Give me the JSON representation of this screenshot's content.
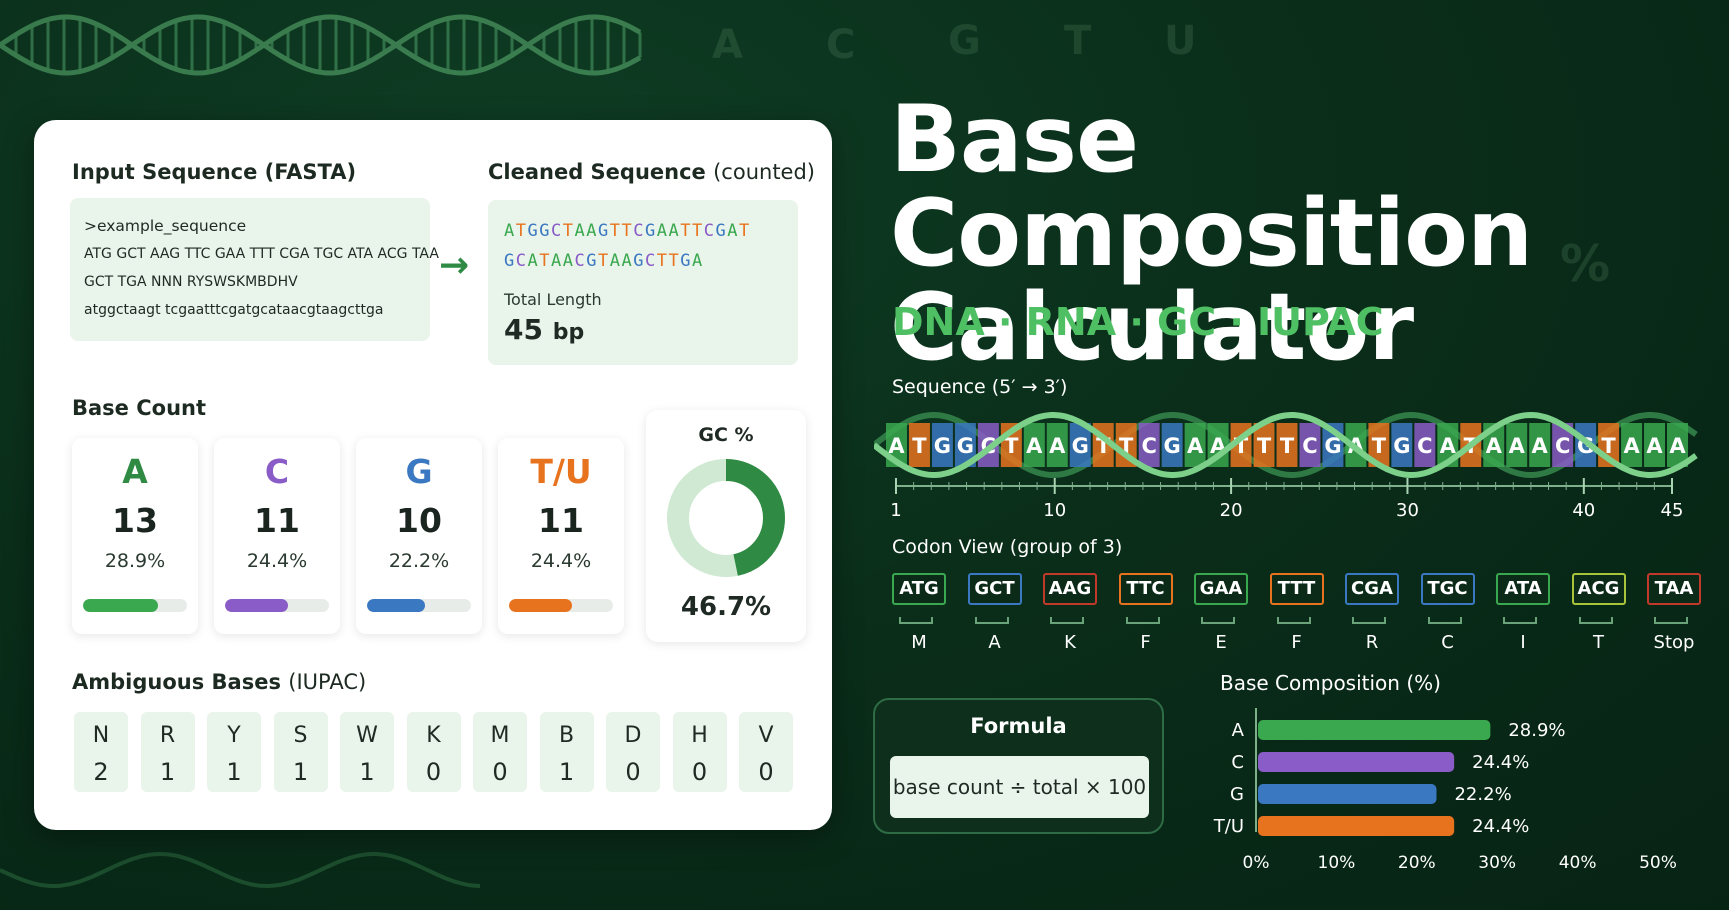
{
  "background_letters": [
    "A",
    "C",
    "G",
    "T",
    "U",
    "%"
  ],
  "left_card": {
    "input": {
      "title": "Input Sequence (FASTA)",
      "lines": [
        ">example_sequence",
        "ATG GCT AAG TTC GAA TTT CGA TGC ATA ACG TAA",
        "GCT TGA NNN RYSWSKMBDHV",
        "atggctaagt tcgaatttcgatgcataacgtaagcttga"
      ]
    },
    "cleaned": {
      "title_bold": "Cleaned Sequence",
      "title_light": "(counted)",
      "line1": "ATGGCTAAGTTCGAATTCGAT",
      "line2": "GCATAACGTAAGCTTGA",
      "length_label": "Total Length",
      "length_value": "45",
      "length_unit": "bp"
    },
    "base_count": {
      "title": "Base Count",
      "bases": [
        {
          "letter": "A",
          "count": "13",
          "pct": "28.9%",
          "fraction": 0.289,
          "color": "#3aa84f"
        },
        {
          "letter": "C",
          "count": "11",
          "pct": "24.4%",
          "fraction": 0.244,
          "color": "#8a5cc7"
        },
        {
          "letter": "G",
          "count": "10",
          "pct": "22.2%",
          "fraction": 0.222,
          "color": "#3b78c2"
        },
        {
          "letter": "T/U",
          "count": "11",
          "pct": "24.4%",
          "fraction": 0.244,
          "color": "#e8731e"
        }
      ]
    },
    "gc": {
      "title": "GC %",
      "value": "46.7%",
      "fraction": 0.467,
      "color": "#2f8a44",
      "light_color": "#cfe9d2"
    },
    "ambiguous": {
      "title_bold": "Ambiguous Bases",
      "title_light": "(IUPAC)",
      "items": [
        {
          "l": "N",
          "n": "2"
        },
        {
          "l": "R",
          "n": "1"
        },
        {
          "l": "Y",
          "n": "1"
        },
        {
          "l": "S",
          "n": "1"
        },
        {
          "l": "W",
          "n": "1"
        },
        {
          "l": "K",
          "n": "0"
        },
        {
          "l": "M",
          "n": "0"
        },
        {
          "l": "B",
          "n": "1"
        },
        {
          "l": "D",
          "n": "0"
        },
        {
          "l": "H",
          "n": "0"
        },
        {
          "l": "V",
          "n": "0"
        }
      ]
    }
  },
  "title": {
    "line1": "Base Composition",
    "line2": "Calculator",
    "subtitle": "DNA · RNA · GC · IUPAC"
  },
  "sequence": {
    "label": "Sequence (5′ → 3′)",
    "bases": "ATGGCTAAGTTCGAATTTCGATGCATAAACGTAAA",
    "ticks": [
      "1",
      "10",
      "20",
      "30",
      "40",
      "45"
    ],
    "colors": {
      "A": "#3aa84f",
      "C": "#8a5cc7",
      "G": "#3b78c2",
      "T": "#e8731e"
    }
  },
  "codons": {
    "label": "Codon View (group of 3)",
    "items": [
      {
        "codon": "ATG",
        "aa": "M",
        "color": "#3aa84f"
      },
      {
        "codon": "GCT",
        "aa": "A",
        "color": "#3b78c2"
      },
      {
        "codon": "AAG",
        "aa": "K",
        "color": "#c0392b"
      },
      {
        "codon": "TTC",
        "aa": "F",
        "color": "#e8731e"
      },
      {
        "codon": "GAA",
        "aa": "E",
        "color": "#3aa84f"
      },
      {
        "codon": "TTT",
        "aa": "F",
        "color": "#e8731e"
      },
      {
        "codon": "CGA",
        "aa": "R",
        "color": "#3b78c2"
      },
      {
        "codon": "TGC",
        "aa": "C",
        "color": "#3b78c2"
      },
      {
        "codon": "ATA",
        "aa": "I",
        "color": "#3aa84f"
      },
      {
        "codon": "ACG",
        "aa": "T",
        "color": "#a8c43a"
      },
      {
        "codon": "TAA",
        "aa": "Stop",
        "color": "#c0392b"
      }
    ]
  },
  "formula": {
    "title": "Formula",
    "text": "base count ÷ total × 100"
  },
  "chart_data": {
    "type": "bar",
    "orientation": "horizontal",
    "title": "Base Composition (%)",
    "categories": [
      "A",
      "C",
      "G",
      "T/U"
    ],
    "values": [
      28.9,
      24.4,
      22.2,
      24.4
    ],
    "value_labels": [
      "28.9%",
      "24.4%",
      "22.2%",
      "24.4%"
    ],
    "colors": [
      "#3aa84f",
      "#8a5cc7",
      "#3b78c2",
      "#e8731e"
    ],
    "xlim": [
      0,
      50
    ],
    "xticks": [
      "0%",
      "10%",
      "20%",
      "30%",
      "40%",
      "50%"
    ],
    "grid": false
  }
}
